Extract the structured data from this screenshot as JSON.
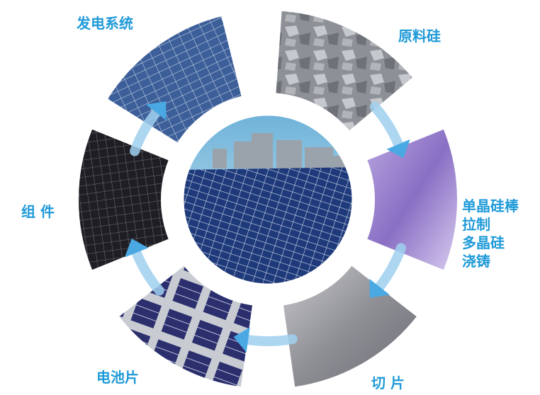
{
  "nodes": [
    {
      "label": [
        "发电系统"
      ]
    },
    {
      "label": [
        "原料硅"
      ]
    },
    {
      "label": [
        "单晶硅棒",
        "拉制",
        "多晶硅",
        "浇铸"
      ]
    },
    {
      "label": [
        "切 片"
      ]
    },
    {
      "label": [
        "电池片"
      ]
    },
    {
      "label": [
        "组 件"
      ]
    }
  ]
}
